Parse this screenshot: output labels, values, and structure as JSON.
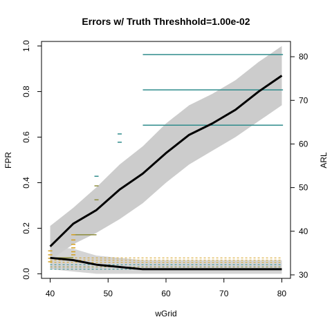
{
  "chart_data": {
    "type": "line",
    "title": "Errors w/ Truth Threshhold=1.00e-02",
    "xlabel": "wGrid",
    "ylabel_left": "FPR",
    "ylabel_right": "ARL",
    "xlim": [
      38.5,
      81.5
    ],
    "ylim_left": [
      -0.02,
      1.02
    ],
    "ylim_right": [
      29.2,
      83.5
    ],
    "x_ticks": [
      40,
      50,
      60,
      70,
      80
    ],
    "y_ticks_left": [
      0.0,
      0.2,
      0.4,
      0.6,
      0.8,
      1.0
    ],
    "y_ticks_right": [
      30,
      40,
      50,
      60,
      70,
      80
    ],
    "grid": false,
    "series": [
      {
        "axis": "left",
        "color": "#000000",
        "x": [
          40,
          44,
          48,
          52,
          56,
          60,
          64,
          68,
          72,
          76,
          80
        ],
        "y": [
          0.12,
          0.22,
          0.28,
          0.37,
          0.44,
          0.53,
          0.61,
          0.66,
          0.72,
          0.8,
          0.87
        ],
        "band_lower": [
          0.06,
          0.13,
          0.18,
          0.24,
          0.31,
          0.4,
          0.48,
          0.54,
          0.6,
          0.67,
          0.74
        ],
        "band_upper": [
          0.21,
          0.29,
          0.38,
          0.48,
          0.56,
          0.66,
          0.74,
          0.79,
          0.85,
          0.93,
          1.0
        ]
      },
      {
        "axis": "left",
        "color": "#000000",
        "x": [
          40,
          44,
          48,
          52,
          56,
          60,
          64,
          68,
          72,
          76,
          80
        ],
        "y": [
          0.07,
          0.06,
          0.04,
          0.03,
          0.02,
          0.02,
          0.02,
          0.02,
          0.02,
          0.02,
          0.02
        ],
        "band_lower": [
          0.02,
          0.01,
          0.0,
          0.0,
          0.0,
          0.0,
          0.0,
          0.0,
          0.0,
          0.0,
          0.0
        ],
        "band_upper": [
          0.12,
          0.11,
          0.08,
          0.07,
          0.06,
          0.06,
          0.06,
          0.06,
          0.06,
          0.06,
          0.06
        ]
      }
    ],
    "arl_segments": [
      {
        "x0": 56,
        "x1": 80.2,
        "y": 80.5,
        "color": "#2e8b8b"
      },
      {
        "x0": 56,
        "x1": 80.2,
        "y": 72.4,
        "color": "#2e8b8b"
      },
      {
        "x0": 56,
        "x1": 80.2,
        "y": 64.3,
        "color": "#2e8b8b"
      },
      {
        "x0": 44,
        "x1": 48,
        "y": 39.2,
        "color": "#8b8b3a"
      },
      {
        "x0": 40,
        "x1": 44,
        "y": 33.9,
        "color": "#8b8b3a"
      }
    ],
    "arl_ticks": [
      {
        "x": 52,
        "y": 62.3,
        "color": "#2e8b8b"
      },
      {
        "x": 52,
        "y": 60.4,
        "color": "#2e8b8b"
      },
      {
        "x": 48,
        "y": 52.6,
        "color": "#2e8b8b"
      },
      {
        "x": 48,
        "y": 50.4,
        "color": "#8b8b3a"
      },
      {
        "x": 48,
        "y": 47.2,
        "color": "#8b8b3a"
      },
      {
        "x": 44,
        "y": 39.2,
        "color": "#d4a020"
      },
      {
        "x": 44,
        "y": 38.0,
        "color": "#d4a020"
      },
      {
        "x": 44,
        "y": 37.0,
        "color": "#d4a020"
      },
      {
        "x": 44,
        "y": 36.2,
        "color": "#d4a020"
      },
      {
        "x": 44,
        "y": 35.3,
        "color": "#d4a020"
      },
      {
        "x": 44,
        "y": 34.6,
        "color": "#d4a020"
      },
      {
        "x": 40,
        "y": 35.5,
        "color": "#d4a020"
      },
      {
        "x": 40,
        "y": 34.6,
        "color": "#d4a020"
      },
      {
        "x": 40,
        "y": 33.8,
        "color": "#d4a020"
      },
      {
        "x": 40,
        "y": 33.0,
        "color": "#d4a020"
      }
    ],
    "dashed_lines": [
      {
        "y": 0.07,
        "color": "#d4a020"
      },
      {
        "y": 0.06,
        "color": "#d4a020"
      },
      {
        "y": 0.05,
        "color": "#d4a020"
      },
      {
        "y": 0.04,
        "color": "#2e8b8b"
      },
      {
        "y": 0.03,
        "color": "#8b8b3a"
      },
      {
        "y": 0.02,
        "color": "#2e8b8b"
      }
    ],
    "band_color": "#cccccc"
  }
}
